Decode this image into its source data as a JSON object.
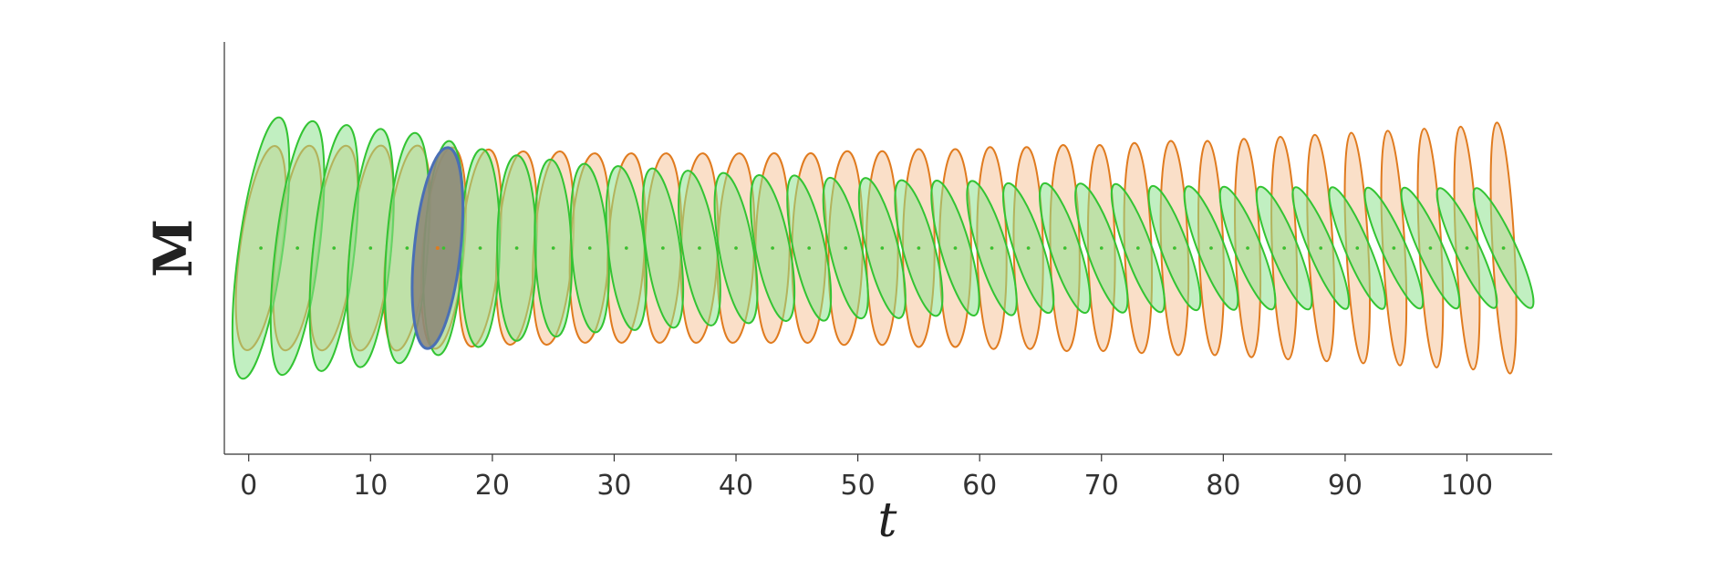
{
  "chart_data": {
    "type": "ellipse",
    "xlabel": "t",
    "ylabel": "M",
    "xlim": [
      -2,
      107
    ],
    "ylim": [
      -1,
      1
    ],
    "xticks": [
      0,
      10,
      20,
      30,
      40,
      50,
      60,
      70,
      80,
      90,
      100
    ],
    "x": [
      1,
      4,
      7,
      10,
      13,
      16,
      19,
      22,
      25,
      28,
      31,
      34,
      37,
      40,
      43,
      46,
      49,
      52,
      55,
      58,
      61,
      64,
      67,
      70,
      73,
      76,
      79,
      82,
      85,
      88,
      91,
      94,
      97,
      100,
      103
    ],
    "series": [
      {
        "color": "#e07b1f",
        "fill": "#f6c49b",
        "values": [
          0,
          0,
          0,
          0,
          0,
          0,
          0,
          0,
          0,
          0,
          0,
          0,
          0,
          0,
          0,
          0,
          0,
          0,
          0,
          0,
          0,
          0,
          0,
          0,
          0,
          0,
          0,
          0,
          0,
          0,
          0,
          0,
          0,
          0,
          0
        ],
        "rx": [
          1.7,
          1.7,
          1.7,
          1.7,
          1.7,
          1.7,
          1.6,
          1.6,
          1.6,
          1.6,
          1.5,
          1.5,
          1.5,
          1.5,
          1.4,
          1.4,
          1.4,
          1.3,
          1.3,
          1.3,
          1.2,
          1.2,
          1.2,
          1.1,
          1.1,
          1.1,
          1.0,
          1.0,
          1.0,
          1.0,
          0.9,
          0.9,
          0.9,
          0.9,
          0.9
        ],
        "ry": [
          0.5,
          0.5,
          0.5,
          0.5,
          0.5,
          0.49,
          0.48,
          0.47,
          0.47,
          0.46,
          0.46,
          0.46,
          0.46,
          0.46,
          0.46,
          0.46,
          0.47,
          0.47,
          0.48,
          0.48,
          0.49,
          0.49,
          0.5,
          0.5,
          0.51,
          0.52,
          0.52,
          0.53,
          0.54,
          0.55,
          0.56,
          0.57,
          0.58,
          0.59,
          0.61
        ],
        "tilt": [
          8,
          7,
          7,
          6,
          6,
          5,
          5,
          4,
          4,
          3,
          3,
          2,
          2,
          2,
          1,
          1,
          1,
          0,
          0,
          0,
          -1,
          -1,
          -1,
          -1,
          -2,
          -2,
          -2,
          -2,
          -2,
          -3,
          -3,
          -3,
          -3,
          -3,
          -3
        ]
      },
      {
        "color": "#33c433",
        "fill": "#8ee28e",
        "values": [
          0,
          0,
          0,
          0,
          0,
          0,
          0,
          0,
          0,
          0,
          0,
          0,
          0,
          0,
          0,
          0,
          0,
          0,
          0,
          0,
          0,
          0,
          0,
          0,
          0,
          0,
          0,
          0,
          0,
          0,
          0,
          0,
          0,
          0,
          0
        ],
        "rx": [
          1.8,
          1.8,
          1.7,
          1.7,
          1.7,
          1.6,
          1.6,
          1.6,
          1.5,
          1.5,
          1.5,
          1.4,
          1.4,
          1.4,
          1.4,
          1.3,
          1.3,
          1.3,
          1.3,
          1.2,
          1.2,
          1.2,
          1.2,
          1.2,
          1.1,
          1.1,
          1.1,
          1.1,
          1.1,
          1.0,
          1.0,
          1.0,
          1.0,
          1.0,
          1.0
        ],
        "ry": [
          0.64,
          0.62,
          0.6,
          0.58,
          0.56,
          0.52,
          0.48,
          0.45,
          0.43,
          0.41,
          0.4,
          0.39,
          0.38,
          0.37,
          0.36,
          0.36,
          0.35,
          0.35,
          0.34,
          0.34,
          0.34,
          0.33,
          0.33,
          0.33,
          0.33,
          0.32,
          0.32,
          0.32,
          0.32,
          0.32,
          0.32,
          0.32,
          0.32,
          0.32,
          0.32
        ],
        "tilt": [
          8,
          7,
          6,
          5,
          4,
          3,
          1,
          0,
          -2,
          -4,
          -6,
          -8,
          -9,
          -10,
          -11,
          -12,
          -13,
          -14,
          -15,
          -16,
          -17,
          -18,
          -18,
          -19,
          -20,
          -20,
          -21,
          -22,
          -22,
          -23,
          -23,
          -24,
          -24,
          -25,
          -25
        ]
      }
    ],
    "highlight": {
      "x": 15.5,
      "value": 0,
      "rx": 1.9,
      "ry": 0.49,
      "tilt": 6,
      "color": "#4a6fb5",
      "fill": "#8d8a78"
    }
  }
}
